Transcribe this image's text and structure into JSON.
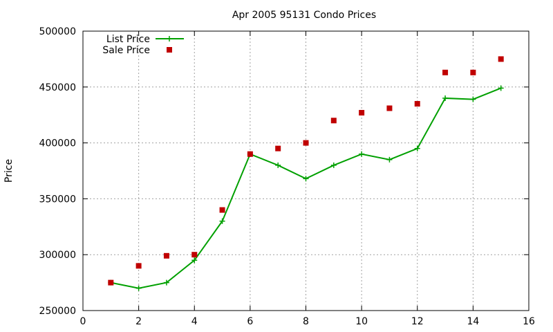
{
  "chart_data": {
    "type": "line",
    "title": "Apr 2005 95131 Condo Prices",
    "xlabel": "",
    "ylabel": "Price",
    "xlim": [
      0,
      16
    ],
    "ylim": [
      250000,
      500000
    ],
    "xticks": [
      0,
      2,
      4,
      6,
      8,
      10,
      12,
      14,
      16
    ],
    "yticks": [
      250000,
      300000,
      350000,
      400000,
      450000,
      500000
    ],
    "grid": true,
    "legend_position": "top-left",
    "x": [
      1,
      2,
      3,
      4,
      5,
      6,
      7,
      8,
      9,
      10,
      11,
      12,
      13,
      14,
      15
    ],
    "series": [
      {
        "name": "List Price",
        "style": "line-with-plus-markers",
        "color": "#00a000",
        "values": [
          275000,
          270000,
          275000,
          295000,
          330000,
          390000,
          380000,
          368000,
          380000,
          390000,
          385000,
          395000,
          440000,
          439000,
          449000
        ]
      },
      {
        "name": "Sale Price",
        "style": "square-markers",
        "color": "#c00000",
        "values": [
          275000,
          290000,
          299000,
          300000,
          340000,
          390000,
          395000,
          400000,
          420000,
          427000,
          431000,
          435000,
          463000,
          463000,
          475000
        ]
      }
    ]
  }
}
